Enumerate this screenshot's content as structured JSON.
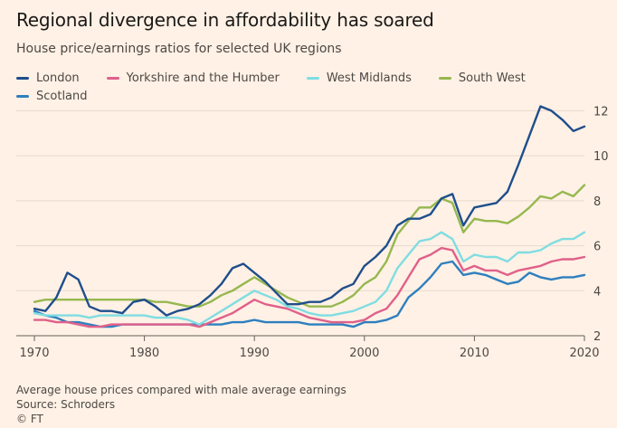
{
  "chart_data": {
    "type": "line",
    "title": "Regional divergence in affordability has soared",
    "subtitle": "House price/earnings ratios for selected UK regions",
    "x": [
      1970,
      1971,
      1972,
      1973,
      1974,
      1975,
      1976,
      1977,
      1978,
      1979,
      1980,
      1981,
      1982,
      1983,
      1984,
      1985,
      1986,
      1987,
      1988,
      1989,
      1990,
      1991,
      1992,
      1993,
      1994,
      1995,
      1996,
      1997,
      1998,
      1999,
      2000,
      2001,
      2002,
      2003,
      2004,
      2005,
      2006,
      2007,
      2008,
      2009,
      2010,
      2011,
      2012,
      2013,
      2014,
      2015,
      2016,
      2017,
      2018,
      2019,
      2020
    ],
    "x_ticks": [
      "1970",
      "1980",
      "1990",
      "2000",
      "2010",
      "2020"
    ],
    "y_ticks": [
      "2",
      "4",
      "6",
      "8",
      "10",
      "12"
    ],
    "ylim": [
      2,
      12.5
    ],
    "grid": true,
    "legend_position": "top-left",
    "series": [
      {
        "name": "London",
        "color": "#1f4e8c",
        "values": [
          3.2,
          3.1,
          3.7,
          4.8,
          4.5,
          3.3,
          3.1,
          3.1,
          3.0,
          3.5,
          3.6,
          3.3,
          2.9,
          3.1,
          3.2,
          3.4,
          3.8,
          4.3,
          5.0,
          5.2,
          4.8,
          4.4,
          3.9,
          3.4,
          3.4,
          3.5,
          3.5,
          3.7,
          4.1,
          4.3,
          5.1,
          5.5,
          6.0,
          6.9,
          7.2,
          7.2,
          7.4,
          8.1,
          8.3,
          6.9,
          7.7,
          7.8,
          7.9,
          8.4,
          9.6,
          10.9,
          12.2,
          12.0,
          11.6,
          11.1,
          11.3
        ]
      },
      {
        "name": "Yorkshire and the Humber",
        "color": "#e0608a",
        "values": [
          2.7,
          2.7,
          2.6,
          2.6,
          2.5,
          2.4,
          2.4,
          2.5,
          2.5,
          2.5,
          2.5,
          2.5,
          2.5,
          2.5,
          2.5,
          2.4,
          2.6,
          2.8,
          3.0,
          3.3,
          3.6,
          3.4,
          3.3,
          3.2,
          3.0,
          2.8,
          2.7,
          2.6,
          2.6,
          2.6,
          2.7,
          3.0,
          3.2,
          3.8,
          4.6,
          5.4,
          5.6,
          5.9,
          5.8,
          4.9,
          5.1,
          4.9,
          4.9,
          4.7,
          4.9,
          5.0,
          5.1,
          5.3,
          5.4,
          5.4,
          5.5
        ]
      },
      {
        "name": "West Midlands",
        "color": "#7fdde2",
        "values": [
          3.0,
          2.9,
          2.9,
          2.9,
          2.9,
          2.8,
          2.9,
          2.9,
          2.9,
          2.9,
          2.9,
          2.8,
          2.8,
          2.8,
          2.7,
          2.5,
          2.8,
          3.1,
          3.4,
          3.7,
          4.0,
          3.8,
          3.6,
          3.3,
          3.2,
          3.0,
          2.9,
          2.9,
          3.0,
          3.1,
          3.3,
          3.5,
          4.0,
          5.0,
          5.6,
          6.2,
          6.3,
          6.6,
          6.3,
          5.3,
          5.6,
          5.5,
          5.5,
          5.3,
          5.7,
          5.7,
          5.8,
          6.1,
          6.3,
          6.3,
          6.6
        ]
      },
      {
        "name": "South West",
        "color": "#96b84f",
        "values": [
          3.5,
          3.6,
          3.6,
          3.6,
          3.6,
          3.6,
          3.6,
          3.6,
          3.6,
          3.6,
          3.6,
          3.5,
          3.5,
          3.4,
          3.3,
          3.3,
          3.5,
          3.8,
          4.0,
          4.3,
          4.6,
          4.3,
          4.0,
          3.7,
          3.5,
          3.3,
          3.3,
          3.3,
          3.5,
          3.8,
          4.3,
          4.6,
          5.3,
          6.5,
          7.1,
          7.7,
          7.7,
          8.1,
          7.9,
          6.6,
          7.2,
          7.1,
          7.1,
          7.0,
          7.3,
          7.7,
          8.2,
          8.1,
          8.4,
          8.2,
          8.7
        ]
      },
      {
        "name": "Scotland",
        "color": "#2e7fbf",
        "values": [
          3.1,
          2.9,
          2.8,
          2.6,
          2.6,
          2.5,
          2.4,
          2.4,
          2.5,
          2.5,
          2.5,
          2.5,
          2.5,
          2.5,
          2.5,
          2.5,
          2.5,
          2.5,
          2.6,
          2.6,
          2.7,
          2.6,
          2.6,
          2.6,
          2.6,
          2.5,
          2.5,
          2.5,
          2.5,
          2.4,
          2.6,
          2.6,
          2.7,
          2.9,
          3.7,
          4.1,
          4.6,
          5.2,
          5.3,
          4.7,
          4.8,
          4.7,
          4.5,
          4.3,
          4.4,
          4.8,
          4.6,
          4.5,
          4.6,
          4.6,
          4.7
        ]
      }
    ],
    "footnote": "Average house prices compared with male average earnings",
    "source": "Source: Schroders",
    "credit": "© FT"
  }
}
